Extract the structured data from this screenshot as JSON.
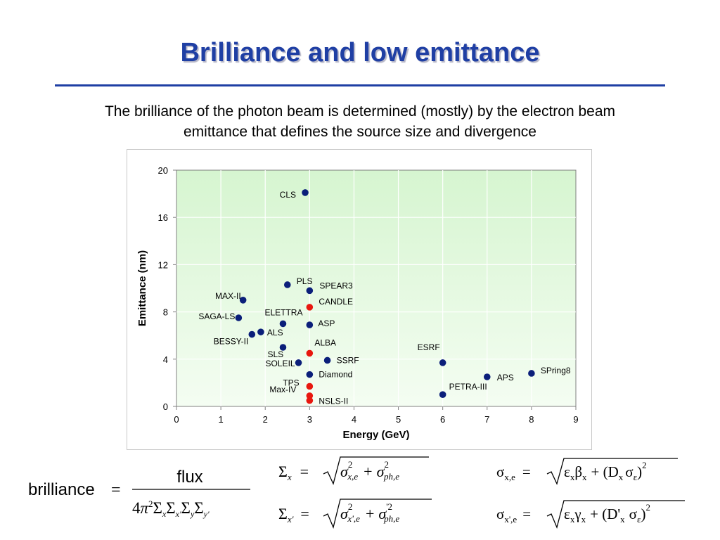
{
  "slide": {
    "title": "Brilliance and low emittance",
    "subtitle_line1": "The brilliance of the photon beam is determined (mostly) by the electron beam",
    "subtitle_line2": "emittance that defines the source size and divergence"
  },
  "colors": {
    "title": "#1f3fa4",
    "rule": "#1f3fa4",
    "existing": "#0b1f7a",
    "planned": "#e8170f",
    "plot_top": "#d6f5d0",
    "plot_bottom": "#f4fdf2"
  },
  "chart_data": {
    "type": "scatter",
    "xlabel": "Energy (GeV)",
    "ylabel": "Emittance (nm)",
    "xlim": [
      0,
      9
    ],
    "ylim": [
      0,
      20
    ],
    "x_ticks": [
      0,
      1,
      2,
      3,
      4,
      5,
      6,
      7,
      8,
      9
    ],
    "y_ticks": [
      0,
      4,
      8,
      12,
      16,
      20
    ],
    "grid": true,
    "legend": "none",
    "points": [
      {
        "label": "CLS",
        "x": 2.9,
        "y": 18.1,
        "color": "#0b1f7a"
      },
      {
        "label": "PLS",
        "x": 2.5,
        "y": 10.3,
        "color": "#0b1f7a"
      },
      {
        "label": "SPEAR3",
        "x": 3.0,
        "y": 9.8,
        "color": "#0b1f7a"
      },
      {
        "label": "MAX-II",
        "x": 1.5,
        "y": 9.0,
        "color": "#0b1f7a"
      },
      {
        "label": "CANDLE",
        "x": 3.0,
        "y": 8.4,
        "color": "#e8170f"
      },
      {
        "label": "SAGA-LS",
        "x": 1.4,
        "y": 7.5,
        "color": "#0b1f7a"
      },
      {
        "label": "ELETTRA",
        "x": 2.4,
        "y": 7.0,
        "color": "#0b1f7a"
      },
      {
        "label": "ASP",
        "x": 3.0,
        "y": 6.9,
        "color": "#0b1f7a"
      },
      {
        "label": "ALS",
        "x": 1.9,
        "y": 6.3,
        "color": "#0b1f7a"
      },
      {
        "label": "BESSY-II",
        "x": 1.7,
        "y": 6.1,
        "color": "#0b1f7a"
      },
      {
        "label": "SLS",
        "x": 2.4,
        "y": 5.0,
        "color": "#0b1f7a"
      },
      {
        "label": "ALBA",
        "x": 3.0,
        "y": 4.5,
        "color": "#e8170f"
      },
      {
        "label": "ESRF",
        "x": 6.0,
        "y": 3.7,
        "color": "#0b1f7a"
      },
      {
        "label": "SSRF",
        "x": 3.4,
        "y": 3.9,
        "color": "#0b1f7a"
      },
      {
        "label": "SOLEIL",
        "x": 2.75,
        "y": 3.7,
        "color": "#0b1f7a"
      },
      {
        "label": "SPring8",
        "x": 8.0,
        "y": 2.8,
        "color": "#0b1f7a"
      },
      {
        "label": "Diamond",
        "x": 3.0,
        "y": 2.7,
        "color": "#0b1f7a"
      },
      {
        "label": "APS",
        "x": 7.0,
        "y": 2.5,
        "color": "#0b1f7a"
      },
      {
        "label": "TPS",
        "x": 3.0,
        "y": 1.7,
        "color": "#e8170f"
      },
      {
        "label": "PETRA-III",
        "x": 6.0,
        "y": 1.0,
        "color": "#0b1f7a"
      },
      {
        "label": "Max-IV",
        "x": 3.0,
        "y": 0.9,
        "color": "#e8170f"
      },
      {
        "label": "NSLS-II",
        "x": 3.0,
        "y": 0.5,
        "color": "#e8170f"
      }
    ]
  },
  "formulas": {
    "brilliance_lhs": "brilliance",
    "brilliance_num": "flux",
    "brilliance_den": "4π²ΣxΣx'ΣyΣy'",
    "sigma_x": "Σx = √(σ²x,e + σ²ph,e)",
    "sigma_xp": "Σx' = √(σ²x',e + σ'²ph,e)",
    "sigma_xe": "σx,e = √(εxβx + (Dxσε)²)",
    "sigma_xpe": "σx',e = √(εxγx + (D'x σε)²)"
  }
}
